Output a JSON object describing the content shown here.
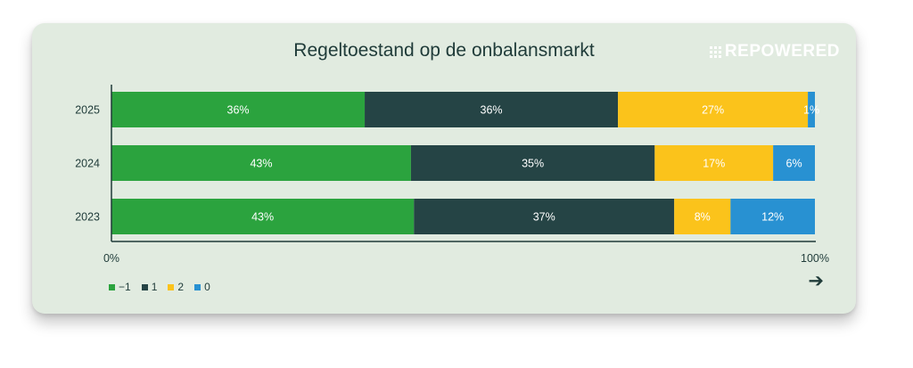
{
  "title": "Regeltoestand op de onbalansmarkt",
  "logo": "REPOWERED",
  "colors": {
    "-1": "#2ba33e",
    "1": "#254445",
    "2": "#fbc31b",
    "0": "#2891d2"
  },
  "arrow_icon": "arrow-right-icon",
  "chart_data": {
    "type": "bar",
    "orientation": "horizontal",
    "stacked": true,
    "categories": [
      "2025",
      "2024",
      "2023"
    ],
    "series": [
      {
        "name": "-1",
        "values": [
          36,
          43,
          43
        ]
      },
      {
        "name": "1",
        "values": [
          36,
          35,
          37
        ]
      },
      {
        "name": "2",
        "values": [
          27,
          17,
          8
        ]
      },
      {
        "name": "0",
        "values": [
          1,
          6,
          12
        ]
      }
    ],
    "labels": [
      [
        "36%",
        "36%",
        "27%",
        "1%"
      ],
      [
        "43%",
        "35%",
        "17%",
        "6%"
      ],
      [
        "43%",
        "37%",
        "8%",
        "12%"
      ]
    ],
    "xticks": [
      "0%",
      "100%"
    ],
    "xlim": [
      0,
      100
    ],
    "legend_position": "bottom-left",
    "grid": false
  }
}
